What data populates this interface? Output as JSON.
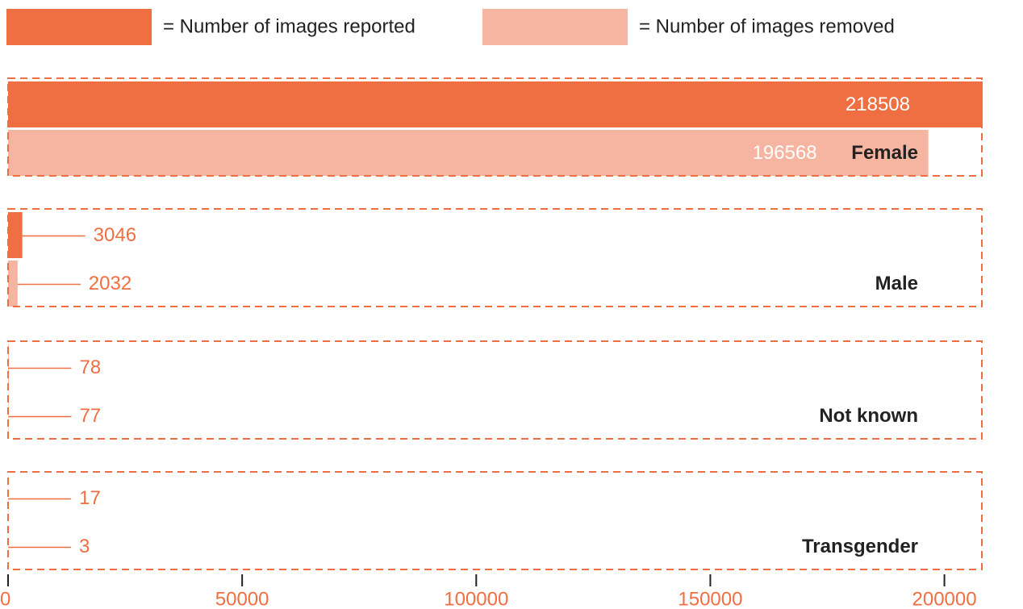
{
  "chart_data": {
    "type": "barh",
    "categories": [
      "Female",
      "Male",
      "Not known",
      "Transgender"
    ],
    "series": [
      {
        "name": "= Number of images reported",
        "color": "#ef6f42",
        "values": [
          218508,
          3046,
          78,
          17
        ]
      },
      {
        "name": "= Number of images removed",
        "color": "#f5b5a0",
        "values": [
          196568,
          2032,
          77,
          3
        ]
      }
    ],
    "xlim": [
      0,
      208000
    ],
    "xticks": [
      0,
      50000,
      100000,
      150000,
      200000
    ],
    "axis_color": "#ef6f42"
  }
}
